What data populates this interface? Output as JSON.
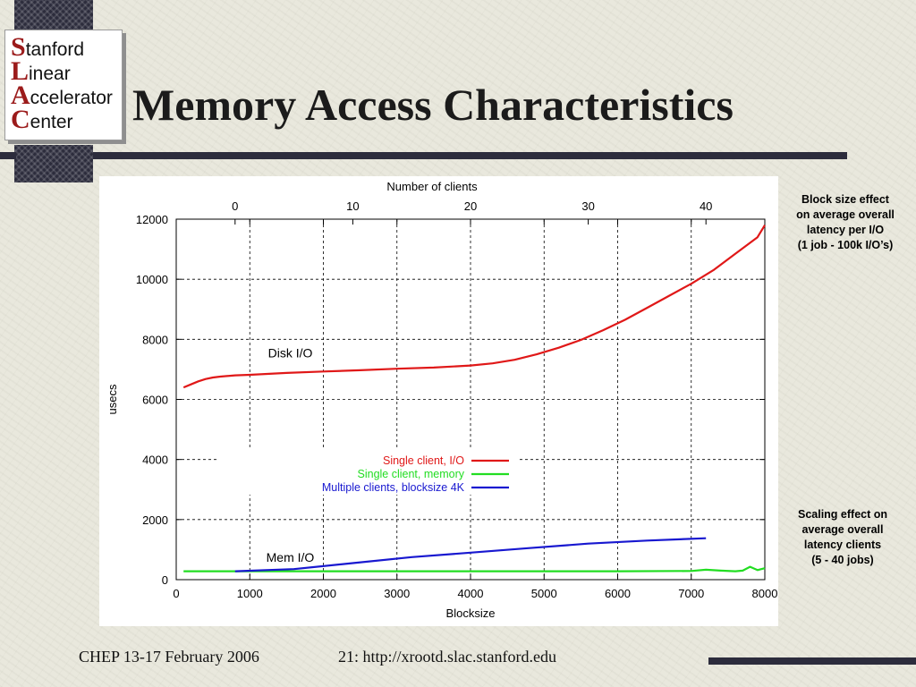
{
  "slide": {
    "title": "Memory Access Characteristics",
    "logo": {
      "lines": [
        {
          "initial": "S",
          "rest": "tanford"
        },
        {
          "initial": "L",
          "rest": "inear"
        },
        {
          "initial": "A",
          "rest": "ccelerator"
        },
        {
          "initial": "C",
          "rest": "enter"
        }
      ]
    },
    "notes": {
      "block_size": [
        "Block size effect",
        "on average overall",
        "latency per I/O",
        "(1 job - 100k I/O’s)"
      ],
      "scaling": [
        "Scaling effect on",
        "average overall",
        "latency  clients",
        "(5 - 40 jobs)"
      ]
    },
    "footer": {
      "left": "CHEP 13-17 February 2006",
      "center": "21: http://xrootd.slac.stanford.edu"
    }
  },
  "chart_data": {
    "type": "line",
    "xlabel": "Blocksize",
    "ylabel": "usecs",
    "x2label": "Number of clients",
    "xlim": [
      0,
      8000
    ],
    "ylim": [
      0,
      12000
    ],
    "xticks": [
      0,
      1000,
      2000,
      3000,
      4000,
      5000,
      6000,
      7000,
      8000
    ],
    "yticks": [
      0,
      2000,
      4000,
      6000,
      8000,
      10000,
      12000
    ],
    "x2ticks": [
      0,
      10,
      20,
      30,
      40
    ],
    "x2_range": [
      -5,
      45
    ],
    "grid": true,
    "legend_position": "center-right",
    "annotations": [
      {
        "text": "Disk I/O",
        "x": 1550,
        "y": 7400
      },
      {
        "text": "Mem I/O",
        "x": 1550,
        "y": 600
      }
    ],
    "series": [
      {
        "name": "Single client, I/O",
        "color": "#e01818",
        "x": [
          100,
          200,
          300,
          400,
          500,
          600,
          800,
          1000,
          1500,
          2000,
          2500,
          3000,
          3500,
          4000,
          4300,
          4600,
          4900,
          5200,
          5500,
          5800,
          6100,
          6400,
          6700,
          7000,
          7300,
          7600,
          7900,
          8000
        ],
        "y": [
          6400,
          6500,
          6600,
          6680,
          6730,
          6760,
          6800,
          6820,
          6880,
          6930,
          6970,
          7020,
          7060,
          7130,
          7200,
          7320,
          7500,
          7720,
          7980,
          8300,
          8650,
          9050,
          9450,
          9850,
          10300,
          10850,
          11400,
          11800
        ]
      },
      {
        "name": "Single client, memory",
        "color": "#22dd22",
        "x": [
          100,
          1000,
          2000,
          3000,
          4000,
          5000,
          6000,
          7000,
          7200,
          7400,
          7600,
          7700,
          7800,
          7900,
          8000
        ],
        "y": [
          280,
          280,
          280,
          280,
          280,
          280,
          280,
          290,
          330,
          300,
          280,
          300,
          430,
          320,
          380
        ]
      },
      {
        "name": "Multiple clients, blocksize 4K",
        "color": "#1818d0",
        "x": [
          0,
          5,
          10,
          15,
          20,
          25,
          30,
          35,
          40
        ],
        "y": [
          280,
          350,
          550,
          750,
          900,
          1050,
          1200,
          1300,
          1380
        ],
        "x_axis": "Number of clients"
      }
    ]
  }
}
